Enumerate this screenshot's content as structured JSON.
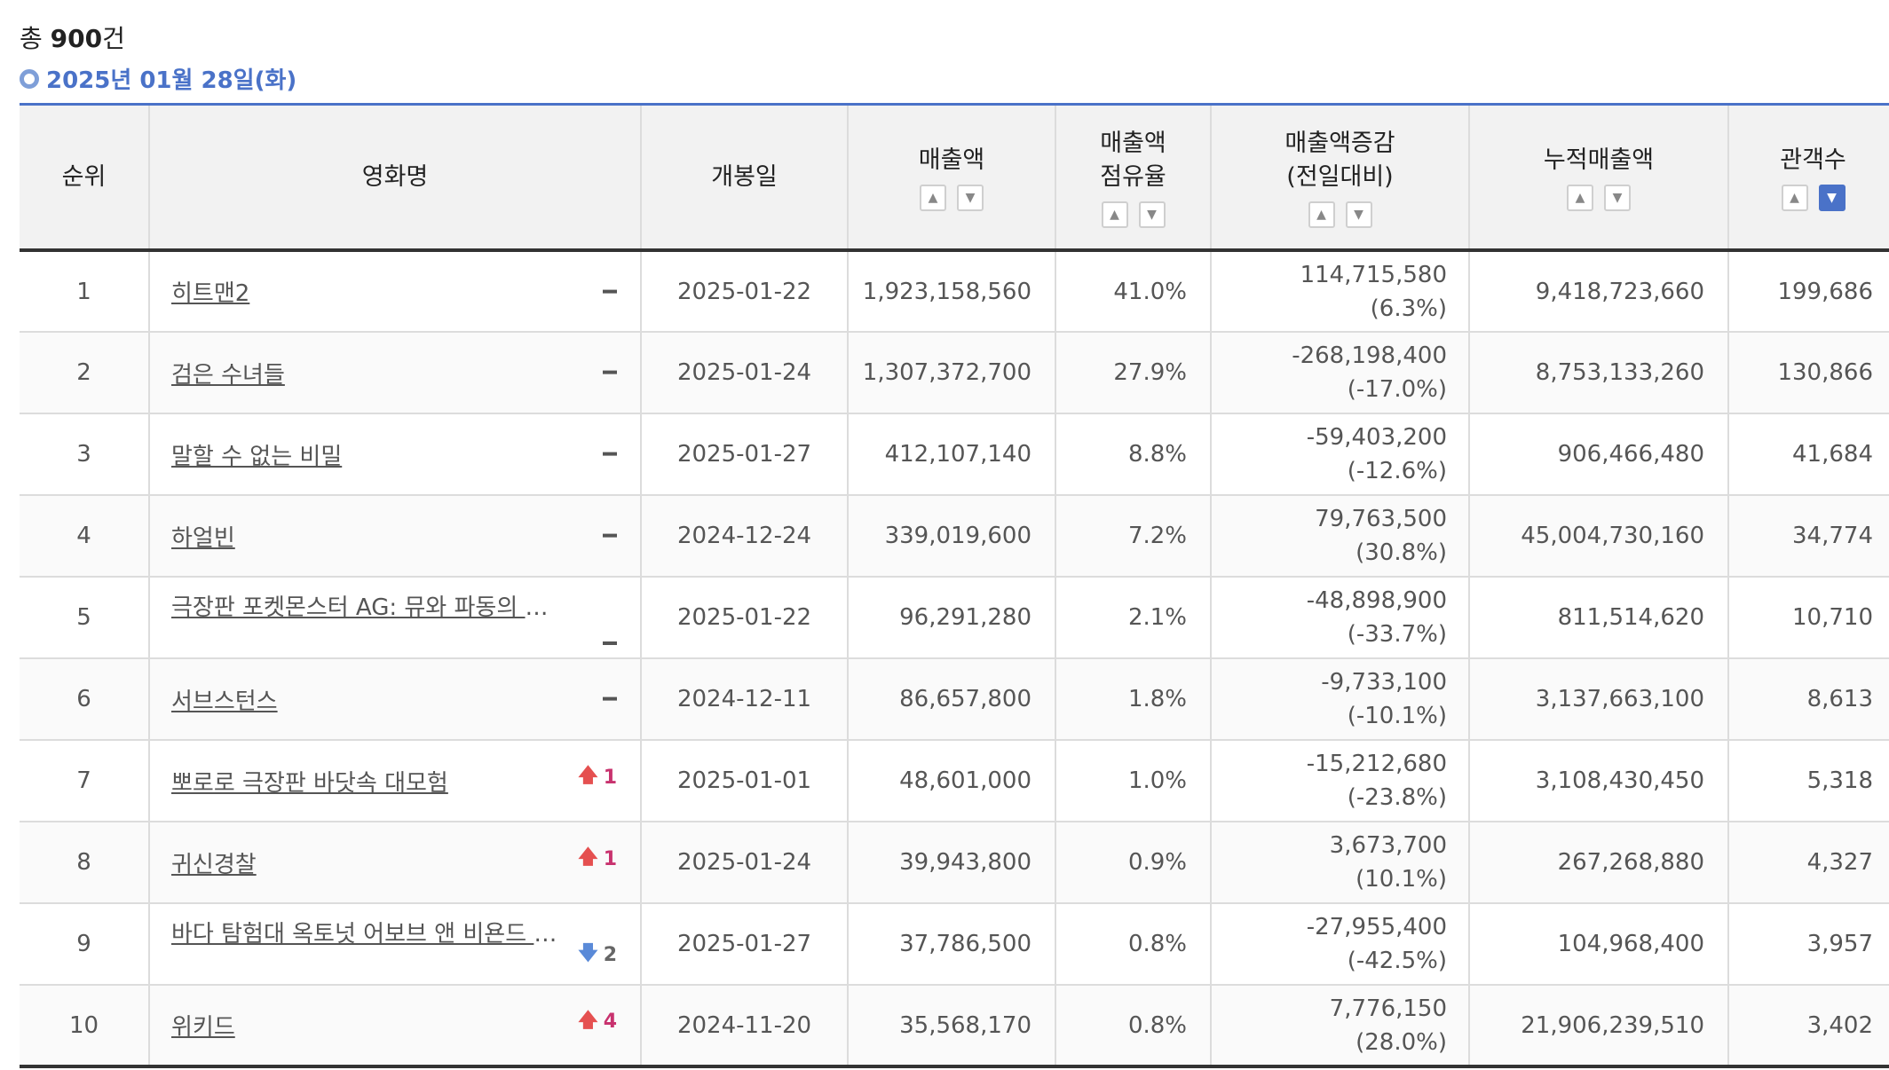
{
  "summary": {
    "prefix": "총 ",
    "count": "900",
    "suffix": "건"
  },
  "date_label": "2025년 01월 28일(화)",
  "columns": {
    "rank": "순위",
    "movie": "영화명",
    "release": "개봉일",
    "sales": "매출액",
    "share_1": "매출액",
    "share_2": "점유율",
    "change_1": "매출액증감",
    "change_2": "(전일대비)",
    "cumulative": "누적매출액",
    "audience": "관객수"
  },
  "sort_icons": {
    "up": "chevron-up-icon",
    "down": "chevron-down-icon",
    "active_column": "audience",
    "active_dir": "down"
  },
  "colors": {
    "accent": "#4a72c8",
    "rank_up": "#c8326e",
    "rank_down": "#5a8ad8"
  },
  "rows": [
    {
      "rank": "1",
      "title": "히트맨2",
      "rank_change": "none",
      "rank_change_value": "",
      "release": "2025-01-22",
      "sales": "1,923,158,560",
      "share": "41.0%",
      "change": "114,715,580",
      "change_pct": "(6.3%)",
      "cumulative": "9,418,723,660",
      "audience": "199,686"
    },
    {
      "rank": "2",
      "title": "검은 수녀들",
      "rank_change": "none",
      "rank_change_value": "",
      "release": "2025-01-24",
      "sales": "1,307,372,700",
      "share": "27.9%",
      "change": "-268,198,400",
      "change_pct": "(-17.0%)",
      "cumulative": "8,753,133,260",
      "audience": "130,866"
    },
    {
      "rank": "3",
      "title": "말할 수 없는 비밀",
      "rank_change": "none",
      "rank_change_value": "",
      "release": "2025-01-27",
      "sales": "412,107,140",
      "share": "8.8%",
      "change": "-59,403,200",
      "change_pct": "(-12.6%)",
      "cumulative": "906,466,480",
      "audience": "41,684"
    },
    {
      "rank": "4",
      "title": "하얼빈",
      "rank_change": "none",
      "rank_change_value": "",
      "release": "2024-12-24",
      "sales": "339,019,600",
      "share": "7.2%",
      "change": "79,763,500",
      "change_pct": "(30.8%)",
      "cumulative": "45,004,730,160",
      "audience": "34,774"
    },
    {
      "rank": "5",
      "title": "극장판 포켓몬스터 AG: 뮤와 파동의 용사 루카리오",
      "rank_change": "none",
      "rank_change_value": "",
      "release": "2025-01-22",
      "sales": "96,291,280",
      "share": "2.1%",
      "change": "-48,898,900",
      "change_pct": "(-33.7%)",
      "cumulative": "811,514,620",
      "audience": "10,710"
    },
    {
      "rank": "6",
      "title": "서브스턴스",
      "rank_change": "none",
      "rank_change_value": "",
      "release": "2024-12-11",
      "sales": "86,657,800",
      "share": "1.8%",
      "change": "-9,733,100",
      "change_pct": "(-10.1%)",
      "cumulative": "3,137,663,100",
      "audience": "8,613"
    },
    {
      "rank": "7",
      "title": "뽀로로 극장판 바닷속 대모험",
      "rank_change": "up",
      "rank_change_value": "1",
      "release": "2025-01-01",
      "sales": "48,601,000",
      "share": "1.0%",
      "change": "-15,212,680",
      "change_pct": "(-23.8%)",
      "cumulative": "3,108,430,450",
      "audience": "5,318"
    },
    {
      "rank": "8",
      "title": "귀신경찰",
      "rank_change": "up",
      "rank_change_value": "1",
      "release": "2025-01-24",
      "sales": "39,943,800",
      "share": "0.9%",
      "change": "3,673,700",
      "change_pct": "(10.1%)",
      "cumulative": "267,268,880",
      "audience": "4,327"
    },
    {
      "rank": "9",
      "title": "바다 탐험대 옥토넛 어보브 앤 비욘드 : 지구를 지켜라",
      "rank_change": "down",
      "rank_change_value": "2",
      "release": "2025-01-27",
      "sales": "37,786,500",
      "share": "0.8%",
      "change": "-27,955,400",
      "change_pct": "(-42.5%)",
      "cumulative": "104,968,400",
      "audience": "3,957"
    },
    {
      "rank": "10",
      "title": "위키드",
      "rank_change": "up",
      "rank_change_value": "4",
      "release": "2024-11-20",
      "sales": "35,568,170",
      "share": "0.8%",
      "change": "7,776,150",
      "change_pct": "(28.0%)",
      "cumulative": "21,906,239,510",
      "audience": "3,402"
    }
  ]
}
